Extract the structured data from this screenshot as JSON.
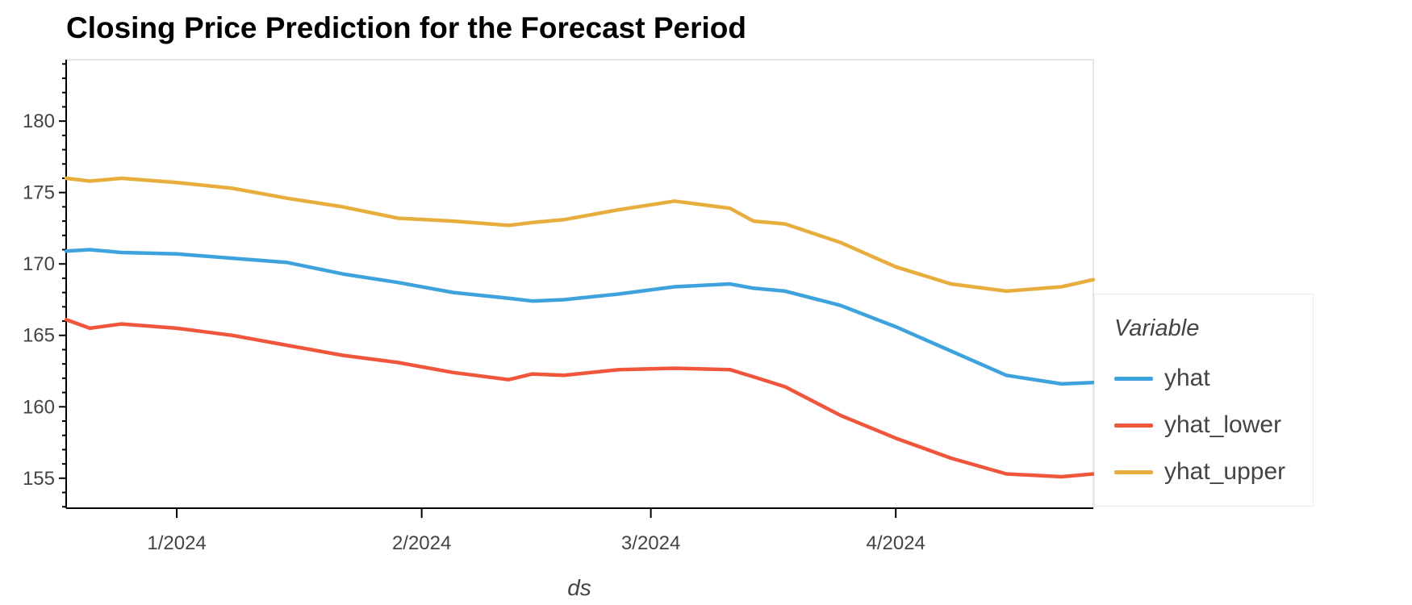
{
  "chart_data": {
    "type": "line",
    "title": "Closing Price Prediction for the Forecast Period",
    "xlabel": "ds",
    "ylabel": "",
    "x_start": "2023-12-18",
    "x_end": "2024-04-26",
    "xlim": [
      "2023-12-18",
      "2024-04-26"
    ],
    "ylim": [
      152.9,
      184.3
    ],
    "x_ticks": [
      {
        "date": "2024-01-01",
        "label": "1/2024"
      },
      {
        "date": "2024-02-01",
        "label": "2/2024"
      },
      {
        "date": "2024-03-01",
        "label": "3/2024"
      },
      {
        "date": "2024-04-01",
        "label": "4/2024"
      }
    ],
    "y_ticks": [
      155,
      160,
      165,
      170,
      175,
      180
    ],
    "grid": false,
    "legend": {
      "title": "Variable",
      "placement": "right"
    },
    "series": [
      {
        "name": "yhat",
        "color": "#3ea3dc",
        "points": [
          [
            "2023-12-18",
            170.9
          ],
          [
            "2023-12-21",
            171.0
          ],
          [
            "2023-12-25",
            170.8
          ],
          [
            "2024-01-01",
            170.7
          ],
          [
            "2024-01-08",
            170.4
          ],
          [
            "2024-01-15",
            170.1
          ],
          [
            "2024-01-22",
            169.3
          ],
          [
            "2024-01-29",
            168.7
          ],
          [
            "2024-02-05",
            168.0
          ],
          [
            "2024-02-12",
            167.6
          ],
          [
            "2024-02-15",
            167.4
          ],
          [
            "2024-02-19",
            167.5
          ],
          [
            "2024-02-26",
            167.9
          ],
          [
            "2024-03-04",
            168.4
          ],
          [
            "2024-03-11",
            168.6
          ],
          [
            "2024-03-14",
            168.3
          ],
          [
            "2024-03-18",
            168.1
          ],
          [
            "2024-03-25",
            167.1
          ],
          [
            "2024-04-01",
            165.6
          ],
          [
            "2024-04-08",
            163.9
          ],
          [
            "2024-04-15",
            162.2
          ],
          [
            "2024-04-22",
            161.6
          ],
          [
            "2024-04-26",
            161.7
          ]
        ]
      },
      {
        "name": "yhat_lower",
        "color": "#f0563c",
        "points": [
          [
            "2023-12-18",
            166.1
          ],
          [
            "2023-12-21",
            165.5
          ],
          [
            "2023-12-25",
            165.8
          ],
          [
            "2024-01-01",
            165.5
          ],
          [
            "2024-01-08",
            165.0
          ],
          [
            "2024-01-15",
            164.3
          ],
          [
            "2024-01-22",
            163.6
          ],
          [
            "2024-01-29",
            163.1
          ],
          [
            "2024-02-05",
            162.4
          ],
          [
            "2024-02-12",
            161.9
          ],
          [
            "2024-02-15",
            162.3
          ],
          [
            "2024-02-19",
            162.2
          ],
          [
            "2024-02-26",
            162.6
          ],
          [
            "2024-03-04",
            162.7
          ],
          [
            "2024-03-11",
            162.6
          ],
          [
            "2024-03-14",
            162.1
          ],
          [
            "2024-03-18",
            161.4
          ],
          [
            "2024-03-25",
            159.4
          ],
          [
            "2024-04-01",
            157.8
          ],
          [
            "2024-04-08",
            156.4
          ],
          [
            "2024-04-15",
            155.3
          ],
          [
            "2024-04-22",
            155.1
          ],
          [
            "2024-04-26",
            155.3
          ]
        ]
      },
      {
        "name": "yhat_upper",
        "color": "#e7ae3e",
        "points": [
          [
            "2023-12-18",
            176.0
          ],
          [
            "2023-12-21",
            175.8
          ],
          [
            "2023-12-25",
            176.0
          ],
          [
            "2024-01-01",
            175.7
          ],
          [
            "2024-01-08",
            175.3
          ],
          [
            "2024-01-15",
            174.6
          ],
          [
            "2024-01-22",
            174.0
          ],
          [
            "2024-01-29",
            173.2
          ],
          [
            "2024-02-05",
            173.0
          ],
          [
            "2024-02-12",
            172.7
          ],
          [
            "2024-02-15",
            172.9
          ],
          [
            "2024-02-19",
            173.1
          ],
          [
            "2024-02-26",
            173.8
          ],
          [
            "2024-03-04",
            174.4
          ],
          [
            "2024-03-11",
            173.9
          ],
          [
            "2024-03-14",
            173.0
          ],
          [
            "2024-03-18",
            172.8
          ],
          [
            "2024-03-25",
            171.5
          ],
          [
            "2024-04-01",
            169.8
          ],
          [
            "2024-04-08",
            168.6
          ],
          [
            "2024-04-15",
            168.1
          ],
          [
            "2024-04-22",
            168.4
          ],
          [
            "2024-04-26",
            168.9
          ]
        ]
      }
    ]
  }
}
